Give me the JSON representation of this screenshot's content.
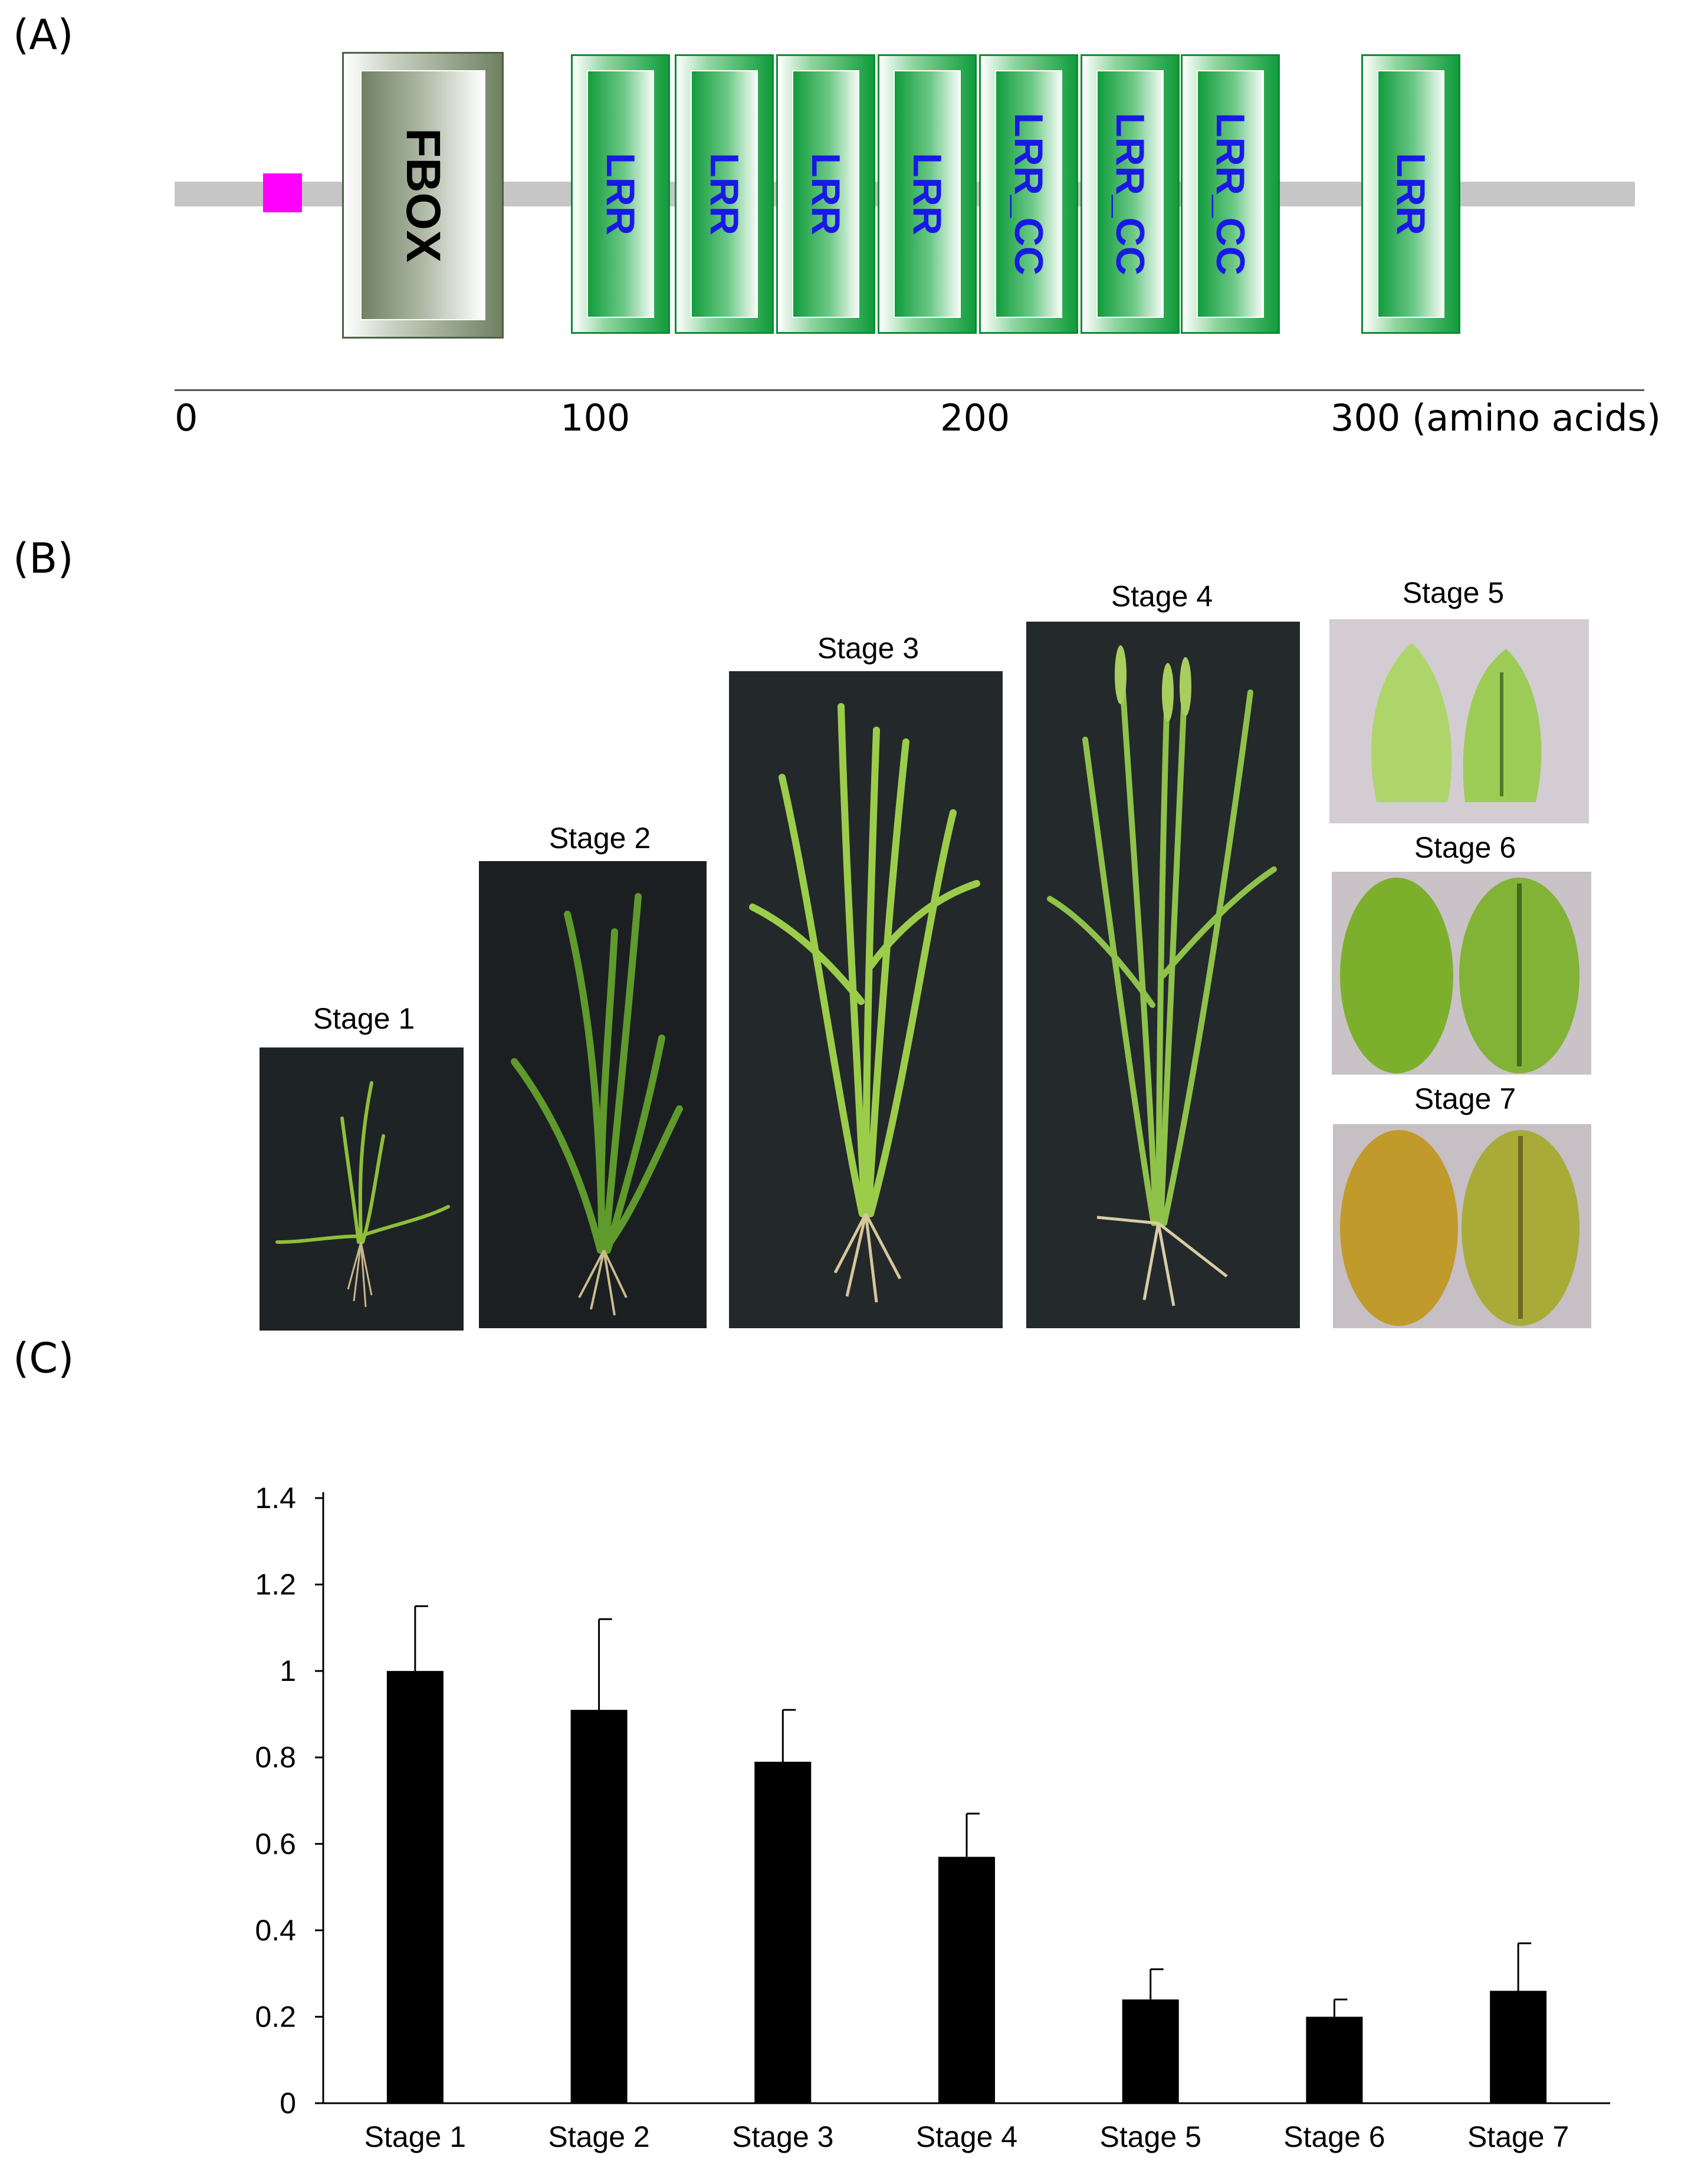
{
  "panels": {
    "a": "(A)",
    "b": "(B)",
    "c": "(C)"
  },
  "protein_diagram": {
    "domains": [
      "FBOX",
      "LRR",
      "LRR",
      "LRR",
      "LRR",
      "LRR_CC",
      "LRR_CC",
      "LRR_CC",
      "LRR"
    ],
    "axis_ticks": [
      "0",
      "100",
      "200",
      "300 (amino acids)"
    ],
    "colors": {
      "backbone": "#c6c6c6",
      "motif": "#ff00ff",
      "fbox": "#6f8063",
      "lrr": "#119c3c",
      "domain_text_lrr": "#1919e6"
    }
  },
  "photos": {
    "stages": [
      "Stage 1",
      "Stage 2",
      "Stage 3",
      "Stage 4",
      "Stage 5",
      "Stage 6",
      "Stage 7"
    ]
  },
  "chart_data": {
    "type": "bar",
    "categories": [
      "Stage 1",
      "Stage 2",
      "Stage 3",
      "Stage 4",
      "Stage 5",
      "Stage 6",
      "Stage 7"
    ],
    "values": [
      1.0,
      0.91,
      0.79,
      0.57,
      0.24,
      0.2,
      0.26
    ],
    "errors": [
      0.15,
      0.21,
      0.12,
      0.1,
      0.07,
      0.04,
      0.11
    ],
    "ylim": [
      0,
      1.4
    ],
    "yticks": [
      "0",
      "0.2",
      "0.4",
      "0.6",
      "0.8",
      "1",
      "1.2",
      "1.4"
    ],
    "title": "",
    "xlabel": "",
    "ylabel": "",
    "bar_color": "#000000",
    "grid": false
  }
}
